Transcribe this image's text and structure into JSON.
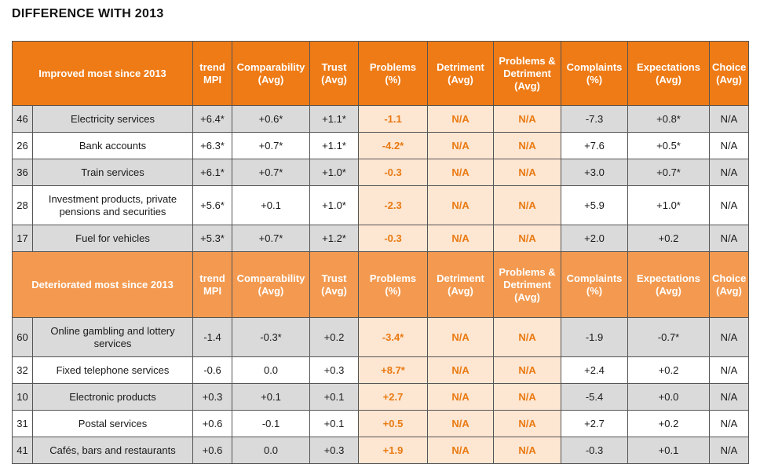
{
  "title": "DIFFERENCE WITH 2013",
  "columns": {
    "trend_mpi": "trend MPI",
    "comparability": "Comparability (Avg)",
    "trust": "Trust (Avg)",
    "problems": "Problems (%)",
    "detriment": "Detriment (Avg)",
    "problems_detriment": "Problems & Detriment (Avg)",
    "complaints": "Complaints (%)",
    "expectations": "Expectations (Avg)",
    "choice": "Choice (Avg)"
  },
  "improved": {
    "heading": "Improved most since 2013",
    "rows": [
      {
        "rank": "46",
        "market": "Electricity services",
        "trend": "+6.4*",
        "comparability": "+0.6*",
        "trust": "+1.1*",
        "problems": "-1.1",
        "detriment": "N/A",
        "problems_detriment": "N/A",
        "complaints": "-7.3",
        "expectations": "+0.8*",
        "choice": "N/A"
      },
      {
        "rank": "26",
        "market": "Bank accounts",
        "trend": "+6.3*",
        "comparability": "+0.7*",
        "trust": "+1.1*",
        "problems": "-4.2*",
        "detriment": "N/A",
        "problems_detriment": "N/A",
        "complaints": "+7.6",
        "expectations": "+0.5*",
        "choice": "N/A"
      },
      {
        "rank": "36",
        "market": "Train services",
        "trend": "+6.1*",
        "comparability": "+0.7*",
        "trust": "+1.0*",
        "problems": "-0.3",
        "detriment": "N/A",
        "problems_detriment": "N/A",
        "complaints": "+3.0",
        "expectations": "+0.7*",
        "choice": "N/A"
      },
      {
        "rank": "28",
        "market": "Investment products, private pensions and securities",
        "trend": "+5.6*",
        "comparability": "+0.1",
        "trust": "+1.0*",
        "problems": "-2.3",
        "detriment": "N/A",
        "problems_detriment": "N/A",
        "complaints": "+5.9",
        "expectations": "+1.0*",
        "choice": "N/A"
      },
      {
        "rank": "17",
        "market": "Fuel for vehicles",
        "trend": "+5.3*",
        "comparability": "+0.7*",
        "trust": "+1.2*",
        "problems": "-0.3",
        "detriment": "N/A",
        "problems_detriment": "N/A",
        "complaints": "+2.0",
        "expectations": "+0.2",
        "choice": "N/A"
      }
    ]
  },
  "deteriorated": {
    "heading": "Deteriorated most since 2013",
    "rows": [
      {
        "rank": "60",
        "market": "Online gambling and lottery services",
        "trend": "-1.4",
        "comparability": "-0.3*",
        "trust": "+0.2",
        "problems": "-3.4*",
        "detriment": "N/A",
        "problems_detriment": "N/A",
        "complaints": "-1.9",
        "expectations": "-0.7*",
        "choice": "N/A"
      },
      {
        "rank": "32",
        "market": "Fixed telephone services",
        "trend": "-0.6",
        "comparability": "0.0",
        "trust": "+0.3",
        "problems": "+8.7*",
        "detriment": "N/A",
        "problems_detriment": "N/A",
        "complaints": "+2.4",
        "expectations": "+0.2",
        "choice": "N/A"
      },
      {
        "rank": "10",
        "market": "Electronic products",
        "trend": "+0.3",
        "comparability": "+0.1",
        "trust": "+0.1",
        "problems": "+2.7",
        "detriment": "N/A",
        "problems_detriment": "N/A",
        "complaints": "-5.4",
        "expectations": "+0.0",
        "choice": "N/A"
      },
      {
        "rank": "31",
        "market": "Postal services",
        "trend": "+0.6",
        "comparability": "-0.1",
        "trust": "+0.1",
        "problems": "+0.5",
        "detriment": "N/A",
        "problems_detriment": "N/A",
        "complaints": "+2.7",
        "expectations": "+0.2",
        "choice": "N/A"
      },
      {
        "rank": "41",
        "market": "Cafés, bars and restaurants",
        "trend": "+0.6",
        "comparability": "0.0",
        "trust": "+0.3",
        "problems": "+1.9",
        "detriment": "N/A",
        "problems_detriment": "N/A",
        "complaints": "-0.3",
        "expectations": "+0.1",
        "choice": "N/A"
      }
    ]
  },
  "colors": {
    "header_improved": "#ee7b16",
    "header_deteriorated": "#f39a50",
    "highlight_cell": "#fde6d2",
    "highlight_text": "#e97a12",
    "row_grey": "#dadada"
  }
}
